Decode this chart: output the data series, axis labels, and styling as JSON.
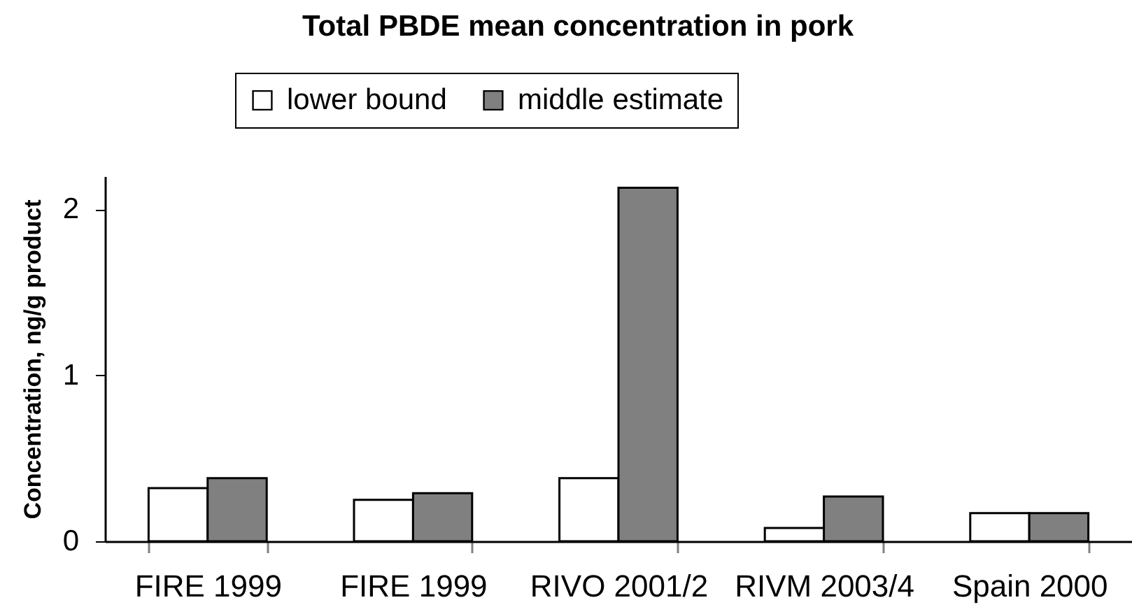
{
  "chart_data": {
    "type": "bar",
    "title": "Total PBDE mean concentration in pork",
    "ylabel": "Concentration, ng/g product",
    "categories": [
      "FIRE 1999",
      "FIRE 1999",
      "RIVO 2001/2",
      "RIVM 2003/4",
      "Spain 2000"
    ],
    "series": [
      {
        "name": "lower bound",
        "color": "#ffffff",
        "values": [
          0.32,
          0.25,
          0.38,
          0.08,
          0.17
        ]
      },
      {
        "name": "middle estimate",
        "color": "#808080",
        "values": [
          0.38,
          0.29,
          2.13,
          0.27,
          0.17
        ]
      }
    ],
    "ylim": [
      0,
      2.2
    ],
    "yticks": [
      0,
      1,
      2
    ],
    "legend": "top",
    "grid": false
  }
}
